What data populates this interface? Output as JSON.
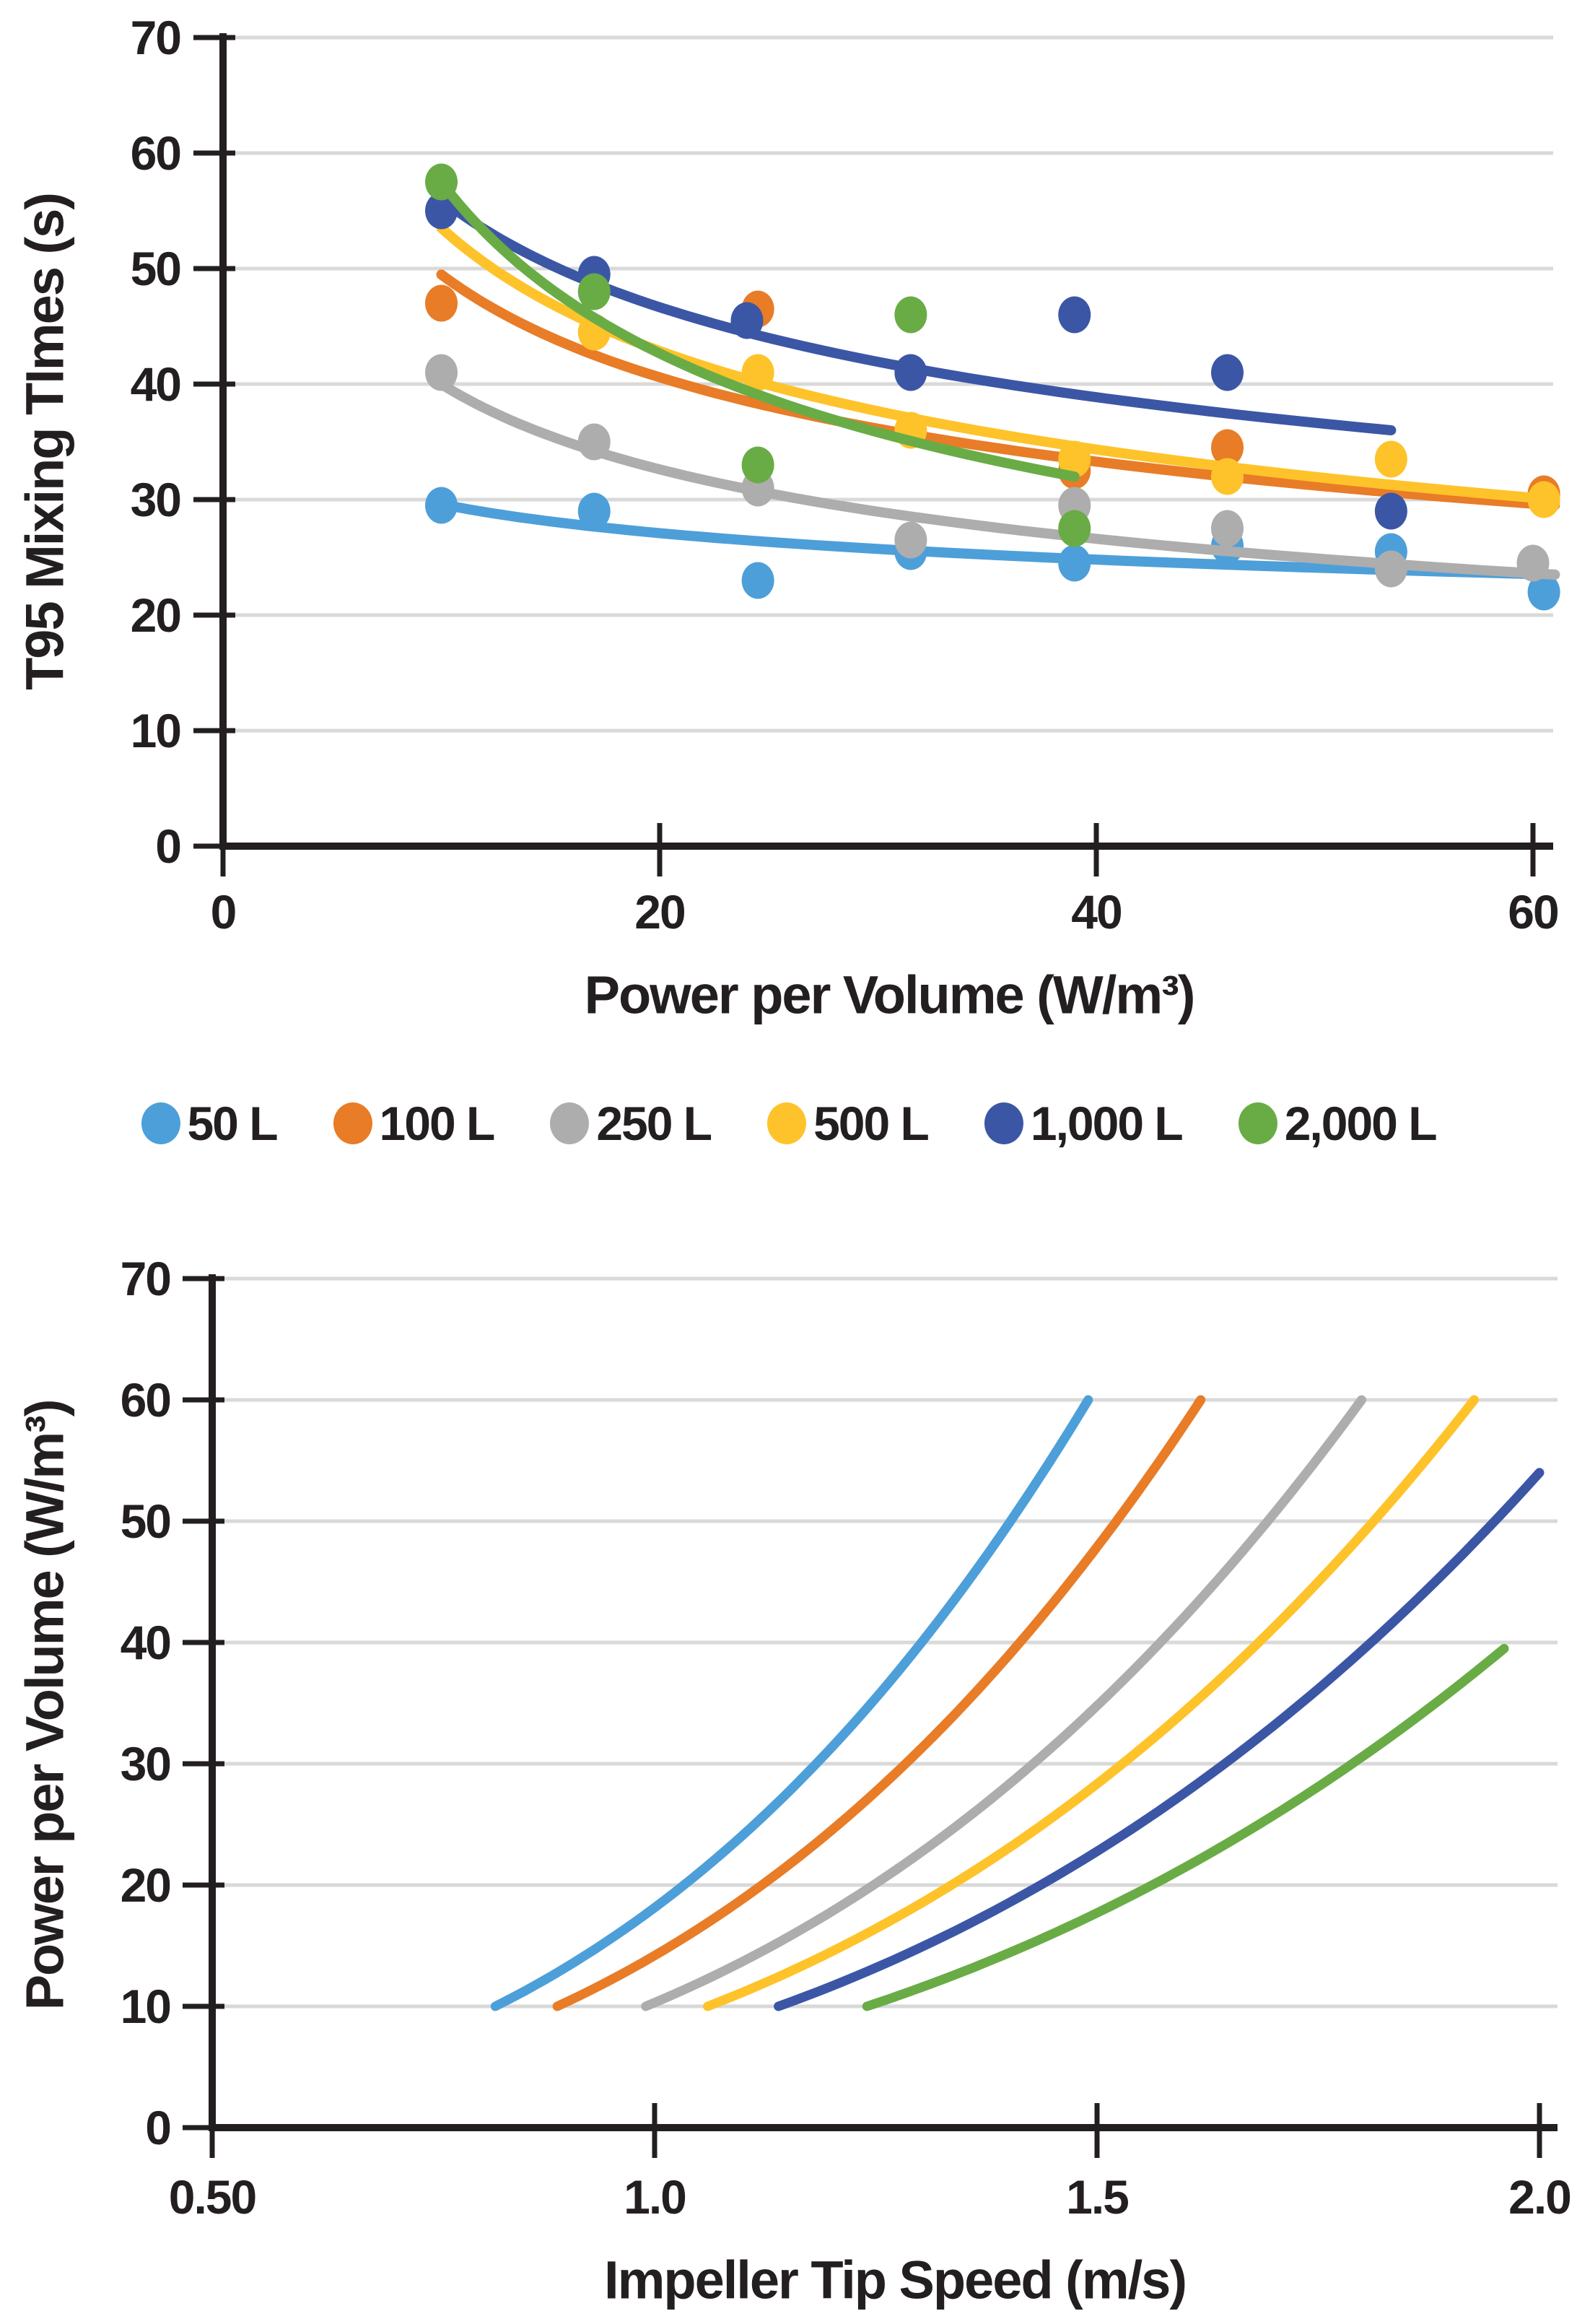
{
  "figure": {
    "background": "#ffffff",
    "axis_color": "#231f20",
    "grid_color": "#d9d9d9"
  },
  "legend": {
    "items": [
      {
        "label": "50 L",
        "color": "#4d9fd9"
      },
      {
        "label": "100 L",
        "color": "#e87c27"
      },
      {
        "label": "250 L",
        "color": "#adadad"
      },
      {
        "label": "500 L",
        "color": "#fec32a"
      },
      {
        "label": "1,000 L",
        "color": "#3c56a6"
      },
      {
        "label": "2,000 L",
        "color": "#69ac46"
      }
    ]
  },
  "chart_data": [
    {
      "type": "scatter",
      "title": "",
      "xlabel": "Power per Volume (W/m³)",
      "ylabel": "T95 Mixing TImes (s)",
      "xlim": [
        0,
        60
      ],
      "ylim": [
        0,
        70
      ],
      "grid": "horizontal",
      "legend_position": "below",
      "xticks": [
        {
          "v": 0,
          "label": "0"
        },
        {
          "v": 20,
          "label": "20"
        },
        {
          "v": 40,
          "label": "40"
        },
        {
          "v": 60,
          "label": "60"
        }
      ],
      "yticks": [
        {
          "v": 0,
          "label": "0"
        },
        {
          "v": 10,
          "label": "10"
        },
        {
          "v": 20,
          "label": "20"
        },
        {
          "v": 30,
          "label": "30"
        },
        {
          "v": 40,
          "label": "40"
        },
        {
          "v": 50,
          "label": "50"
        },
        {
          "v": 60,
          "label": "60"
        },
        {
          "v": 70,
          "label": "70"
        }
      ],
      "series": [
        {
          "name": "50 L",
          "color": "#4d9fd9",
          "points": [
            [
              10,
              29.5
            ],
            [
              17,
              29
            ],
            [
              24.5,
              23
            ],
            [
              31.5,
              25.5
            ],
            [
              39,
              24.5
            ],
            [
              46,
              26
            ],
            [
              53.5,
              25.5
            ],
            [
              60.5,
              22
            ]
          ],
          "trend": {
            "model": "power",
            "a": 39.7,
            "b": -0.1275,
            "x1": 10,
            "x2": 61
          }
        },
        {
          "name": "100 L",
          "color": "#e87c27",
          "points": [
            [
              10,
              47
            ],
            [
              24.5,
              46.5
            ],
            [
              39,
              32.5
            ],
            [
              46,
              34.5
            ],
            [
              60.5,
              30.5
            ]
          ],
          "trend": {
            "model": "power",
            "a": 95.6,
            "b": -0.286,
            "x1": 10,
            "x2": 61
          }
        },
        {
          "name": "250 L",
          "color": "#adadad",
          "points": [
            [
              10,
              41
            ],
            [
              17,
              35
            ],
            [
              24.5,
              31
            ],
            [
              31.5,
              26.5
            ],
            [
              39,
              29.5
            ],
            [
              46,
              27.5
            ],
            [
              53.5,
              24
            ],
            [
              60,
              24.5
            ]
          ],
          "trend": {
            "model": "power",
            "a": 78.7,
            "b": -0.294,
            "x1": 10,
            "x2": 61
          }
        },
        {
          "name": "500 L",
          "color": "#fec32a",
          "points": [
            [
              17,
              44.5
            ],
            [
              24.5,
              41
            ],
            [
              31.5,
              36
            ],
            [
              39,
              33.5
            ],
            [
              46,
              32
            ],
            [
              53.5,
              33.5
            ],
            [
              60.5,
              30
            ]
          ],
          "trend": {
            "model": "power",
            "a": 111.8,
            "b": -0.32,
            "x1": 10,
            "x2": 61
          }
        },
        {
          "name": "1,000 L",
          "color": "#3c56a6",
          "points": [
            [
              10,
              55
            ],
            [
              17,
              49.5
            ],
            [
              24,
              45.5
            ],
            [
              31.5,
              41
            ],
            [
              39,
              46
            ],
            [
              46,
              41
            ],
            [
              53.5,
              29
            ]
          ],
          "trend": {
            "model": "power",
            "a": 102.7,
            "b": -0.2634,
            "x1": 10,
            "x2": 53.5
          }
        },
        {
          "name": "2,000 L",
          "color": "#69ac46",
          "points": [
            [
              10,
              57.5
            ],
            [
              17,
              48
            ],
            [
              24.5,
              33
            ],
            [
              31.5,
              46
            ],
            [
              39,
              27.5
            ]
          ],
          "trend": {
            "model": "power",
            "a": 154.9,
            "b": -0.4305,
            "x1": 10,
            "x2": 39
          }
        }
      ]
    },
    {
      "type": "line",
      "title": "",
      "xlabel": "Impeller Tip Speed (m/s)",
      "ylabel": "Power per Volume (W/m³)",
      "xlim": [
        0.5,
        2.0
      ],
      "ylim": [
        0,
        70
      ],
      "grid": "horizontal",
      "xticks": [
        {
          "v": 0.5,
          "label": "0.50"
        },
        {
          "v": 1.0,
          "label": "1.0"
        },
        {
          "v": 1.5,
          "label": "1.5"
        },
        {
          "v": 2.0,
          "label": "2.0"
        }
      ],
      "yticks": [
        {
          "v": 0,
          "label": "0"
        },
        {
          "v": 10,
          "label": "10"
        },
        {
          "v": 20,
          "label": "20"
        },
        {
          "v": 30,
          "label": "30"
        },
        {
          "v": 40,
          "label": "40"
        },
        {
          "v": 50,
          "label": "50"
        },
        {
          "v": 60,
          "label": "60"
        },
        {
          "v": 70,
          "label": "70"
        }
      ],
      "series": [
        {
          "name": "50 L",
          "color": "#4d9fd9",
          "curve": {
            "model": "cubic",
            "p0": 10,
            "v0": 0.82,
            "vmax": 1.5,
            "pcap": 60
          }
        },
        {
          "name": "100 L",
          "color": "#e87c27",
          "curve": {
            "model": "cubic",
            "p0": 10,
            "v0": 0.89,
            "vmax": 1.62,
            "pcap": 60
          }
        },
        {
          "name": "250 L",
          "color": "#adadad",
          "curve": {
            "model": "cubic",
            "p0": 10,
            "v0": 0.99,
            "vmax": 1.8,
            "pcap": 60
          }
        },
        {
          "name": "500 L",
          "color": "#fec32a",
          "curve": {
            "model": "cubic",
            "p0": 10,
            "v0": 1.06,
            "vmax": 1.93,
            "pcap": 60
          }
        },
        {
          "name": "1,000 L",
          "color": "#3c56a6",
          "curve": {
            "model": "cubic",
            "p0": 10,
            "v0": 1.14,
            "vmax": 2.0,
            "pcap": 60
          }
        },
        {
          "name": "2,000 L",
          "color": "#69ac46",
          "curve": {
            "model": "cubic",
            "p0": 10,
            "v0": 1.24,
            "vmax": 1.96,
            "pcap": 60
          }
        }
      ]
    }
  ]
}
